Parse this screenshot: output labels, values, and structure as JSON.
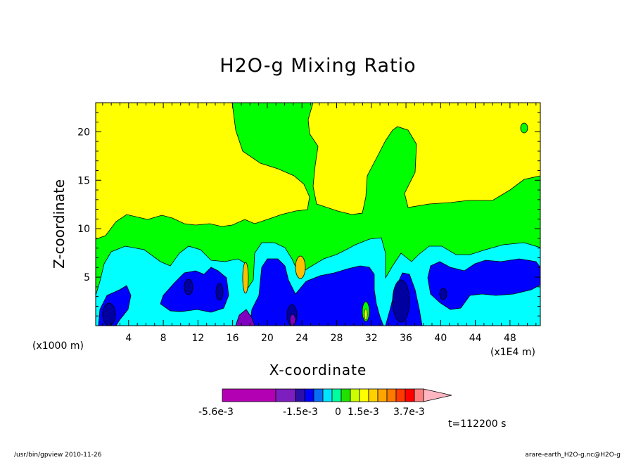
{
  "header": {
    "title": "H2O-g Mixing Ratio"
  },
  "chart_data": {
    "type": "heatmap",
    "title": "H2O-g Mixing Ratio",
    "xlabel": "X-coordinate",
    "ylabel": "Z-coordinate",
    "x_unit_label": "(x1000 m)",
    "x_multiplier_label": "(x1E4 m)",
    "xlim": [
      0.2,
      51.5
    ],
    "ylim": [
      0,
      23
    ],
    "x_ticks": [
      4,
      8,
      12,
      16,
      20,
      24,
      28,
      32,
      36,
      40,
      44,
      48
    ],
    "x_tick_labels": [
      "4",
      "8",
      "12",
      "16",
      "20",
      "24",
      "28",
      "32",
      "36",
      "40",
      "44",
      "48"
    ],
    "y_ticks": [
      5,
      10,
      15,
      20
    ],
    "y_tick_labels": [
      "5",
      "10",
      "15",
      "20"
    ],
    "colorbar": {
      "colors": [
        "#b300b3",
        "#7d1fbf",
        "#2b0fa6",
        "#0000ff",
        "#0a6df5",
        "#00e5ff",
        "#00ff9f",
        "#22e000",
        "#ccff00",
        "#ffff00",
        "#ffd000",
        "#ffa500",
        "#ff7a00",
        "#ff3a00",
        "#ff0000",
        "#ff7f7f",
        "#ffb6c1"
      ],
      "labels": [
        "-5.6e-3",
        "-1.5e-3",
        "0",
        "1.5e-3",
        "3.7e-3"
      ]
    },
    "regions": [
      {
        "level": "yellow",
        "color": "#ffff00"
      },
      {
        "level": "green",
        "color": "#00ff00"
      },
      {
        "level": "cyan",
        "color": "#00ffff"
      },
      {
        "level": "blue",
        "color": "#0000ff"
      },
      {
        "level": "darkblue",
        "color": "#0000a0"
      },
      {
        "level": "purple",
        "color": "#8000c0"
      },
      {
        "level": "orange",
        "color": "#ffc000"
      }
    ]
  },
  "annotations": {
    "time": "t=112200 s"
  },
  "footer": {
    "left": "/usr/bin/gpview  2010-11-26",
    "right": "arare-earth_H2O-g.nc@H2O-g"
  }
}
